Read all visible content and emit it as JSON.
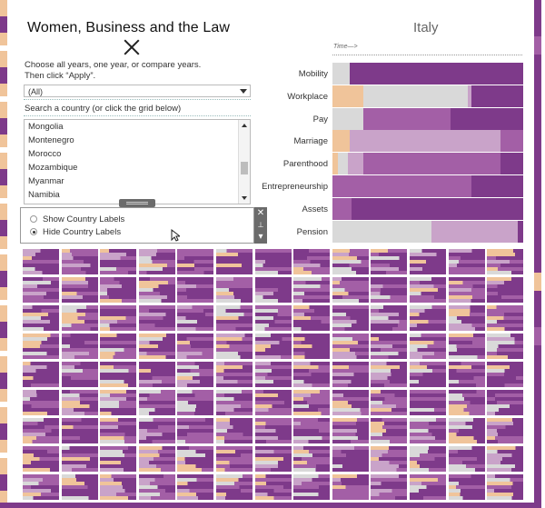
{
  "title": "Women, Business and the Law",
  "instructions": [
    "Choose all years, one year, or compare years.",
    "Then click “Apply”."
  ],
  "year_select": {
    "value": "(All)"
  },
  "search_label": "Search a country (or click the grid below)",
  "countries": [
    "Mongolia",
    "Montenegro",
    "Morocco",
    "Mozambique",
    "Myanmar",
    "Namibia"
  ],
  "label_options": [
    {
      "label": "Show Country Labels",
      "selected": false
    },
    {
      "label": "Hide Country Labels",
      "selected": true
    }
  ],
  "popup_tools": {
    "close": "✕",
    "pin": "📌",
    "menu": "▾"
  },
  "country_title": "Italy",
  "time_label": "Time—>",
  "colors": {
    "dark": "#7e3a8a",
    "mid": "#a35fa6",
    "light": "#c9a3c9",
    "grey": "#d9d9d9",
    "peach": "#f0c49a"
  },
  "categories": [
    {
      "label": "Mobility",
      "segments": [
        [
          "grey",
          0.09
        ],
        [
          "dark",
          0.91
        ]
      ]
    },
    {
      "label": "Workplace",
      "segments": [
        [
          "peach",
          0.16
        ],
        [
          "grey",
          0.55
        ],
        [
          "light",
          0.02
        ],
        [
          "dark",
          0.27
        ]
      ]
    },
    {
      "label": "Pay",
      "segments": [
        [
          "grey",
          0.16
        ],
        [
          "mid",
          0.46
        ],
        [
          "dark",
          0.38
        ]
      ]
    },
    {
      "label": "Marriage",
      "segments": [
        [
          "peach",
          0.04
        ],
        [
          "peach",
          0.05
        ],
        [
          "light",
          0.79
        ],
        [
          "mid",
          0.12
        ]
      ]
    },
    {
      "label": "Parenthood",
      "segments": [
        [
          "peach",
          0.03
        ],
        [
          "grey",
          0.05
        ],
        [
          "light",
          0.08
        ],
        [
          "mid",
          0.72
        ],
        [
          "dark",
          0.12
        ]
      ]
    },
    {
      "label": "Entrepreneurship",
      "segments": [
        [
          "mid",
          0.73
        ],
        [
          "dark",
          0.27
        ]
      ]
    },
    {
      "label": "Assets",
      "segments": [
        [
          "mid",
          0.1
        ],
        [
          "dark",
          0.9
        ]
      ]
    },
    {
      "label": "Pension",
      "segments": [
        [
          "grey",
          0.52
        ],
        [
          "light",
          0.45
        ],
        [
          "dark",
          0.03
        ]
      ]
    }
  ]
}
